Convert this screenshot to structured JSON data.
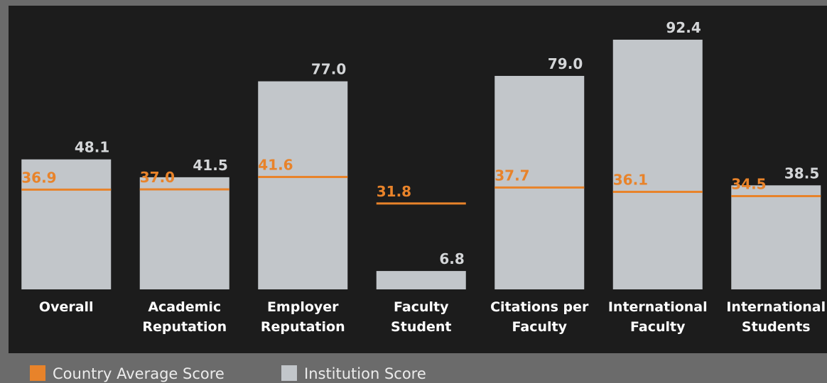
{
  "chart_data": {
    "type": "bar",
    "categories": [
      [
        "Overall"
      ],
      [
        "Academic",
        "Reputation"
      ],
      [
        "Employer",
        "Reputation"
      ],
      [
        "Faculty",
        "Student"
      ],
      [
        "Citations per",
        "Faculty"
      ],
      [
        "International",
        "Faculty"
      ],
      [
        "International",
        "Students"
      ]
    ],
    "series": [
      {
        "name": "Country Average Score",
        "color": "#e8832a",
        "values": [
          36.9,
          37.0,
          41.6,
          31.8,
          37.7,
          36.1,
          34.5
        ],
        "value_labels": [
          "36.9",
          "37.0",
          "41.6",
          "31.8",
          "37.7",
          "36.1",
          "34.5"
        ]
      },
      {
        "name": "Institution Score",
        "color": "#c2c6ca",
        "values": [
          48.1,
          41.5,
          77.0,
          6.8,
          79.0,
          92.4,
          38.5
        ],
        "value_labels": [
          "48.1",
          "41.5",
          "77.0",
          "6.8",
          "79.0",
          "92.4",
          "38.5"
        ]
      }
    ],
    "ylim": [
      0,
      100
    ]
  }
}
